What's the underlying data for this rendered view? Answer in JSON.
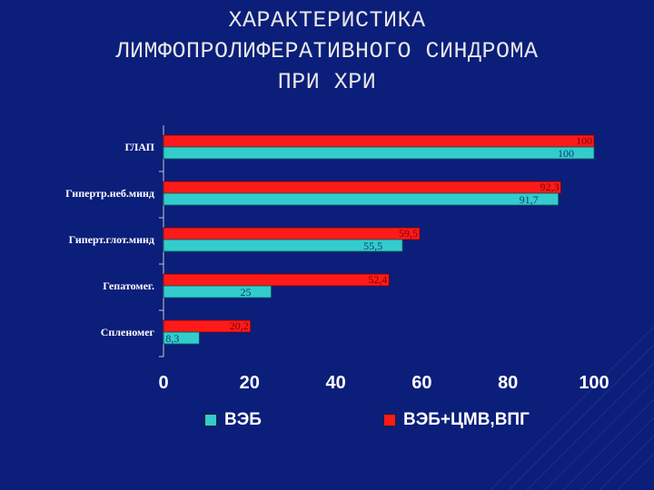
{
  "slide": {
    "title_lines": [
      "ХАРАКТЕРИСТИКА",
      "ЛИМФОПРОЛИФЕРАТИВНОГО СИНДРОМА",
      "ПРИ ХРИ"
    ]
  },
  "colors": {
    "background": "#0b1e7a",
    "series_veb": "#33cccc",
    "series_combo": "#ff1a1a",
    "axis_tick_text": "#ffffff",
    "category_text": "#ffffff"
  },
  "chart_data": {
    "type": "bar",
    "orientation": "horizontal",
    "categories": [
      "ГЛАП",
      "Гипертр.неб.минд",
      "Гиперт.глот.минд",
      "Гепатомег.",
      "Спленомег"
    ],
    "series": [
      {
        "name": "ВЭБ",
        "values": [
          100,
          91.7,
          55.5,
          25,
          8.3
        ]
      },
      {
        "name": "ВЭБ+ЦМВ,ВПГ",
        "values": [
          100,
          92.3,
          59.5,
          52.4,
          20.2
        ]
      }
    ],
    "data_labels": {
      "ВЭБ": [
        "100",
        "91,7",
        "55,5",
        "25",
        "8,3"
      ],
      "ВЭБ+ЦМВ,ВПГ": [
        "100",
        "92,3",
        "59,5",
        "52,4",
        "20,2"
      ]
    },
    "xlim": [
      0,
      100
    ],
    "xticks": [
      "0",
      "20",
      "40",
      "60",
      "80",
      "100"
    ],
    "grid": false,
    "legend_position": "bottom"
  },
  "legend": {
    "items": [
      {
        "label": "ВЭБ",
        "color": "#33cccc"
      },
      {
        "label": "ВЭБ+ЦМВ,ВПГ",
        "color": "#ff1a1a"
      }
    ]
  }
}
